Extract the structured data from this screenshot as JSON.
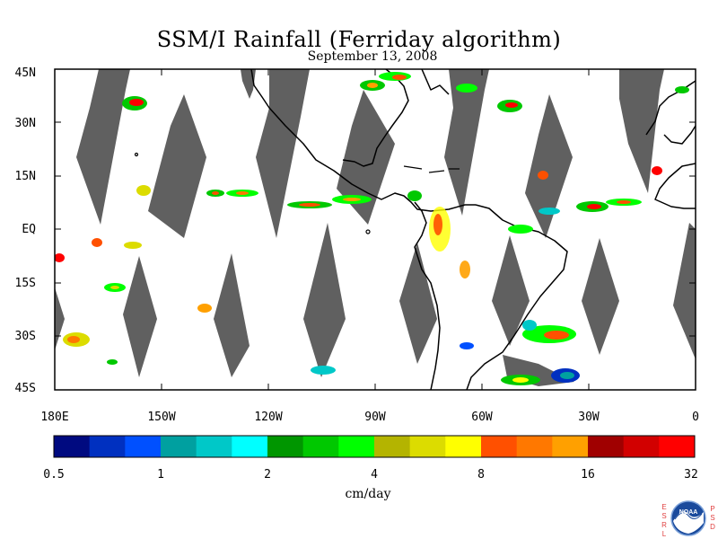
{
  "header": {
    "title": "SSM/I Rainfall (Ferriday algorithm)",
    "date": "September 13, 2008"
  },
  "map": {
    "latitude_labels": [
      "45N",
      "30N",
      "15N",
      "EQ",
      "15S",
      "30S",
      "45S"
    ],
    "longitude_labels": [
      "180E",
      "150W",
      "120W",
      "90W",
      "60W",
      "30W",
      "0"
    ],
    "colors": {
      "no_data_swath_gap": "#606060",
      "land_outline": "#000000",
      "background": "#ffffff"
    }
  },
  "colorbar": {
    "tick_labels": [
      "0.5",
      "1",
      "2",
      "4",
      "8",
      "16",
      "32"
    ],
    "units": "cm/day",
    "colors": [
      "#000a80",
      "#0030c0",
      "#0050ff",
      "#00a0a0",
      "#00c8c8",
      "#00ffff",
      "#009600",
      "#00c800",
      "#00ff00",
      "#b4b400",
      "#dcdc00",
      "#ffff00",
      "#ff5000",
      "#ff7800",
      "#ffa000",
      "#a00000",
      "#d20000",
      "#ff0000"
    ]
  },
  "logo": {
    "org_name": "NOAA",
    "left_letters": "ESRL",
    "right_letters": "PSD"
  }
}
